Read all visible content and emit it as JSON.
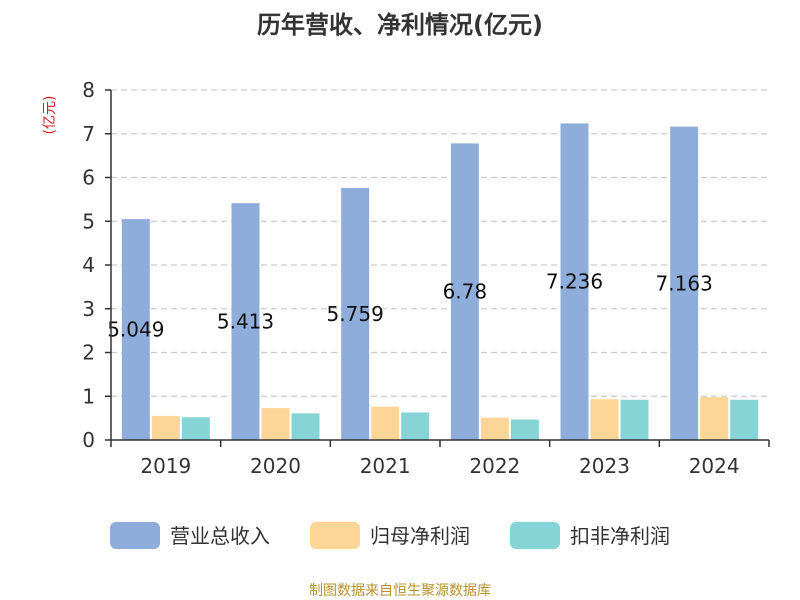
{
  "chart_data": {
    "type": "bar",
    "title": "历年营收、净利情况(亿元)",
    "unit_label": "(亿元)",
    "categories": [
      "2019",
      "2020",
      "2021",
      "2022",
      "2023",
      "2024"
    ],
    "series": [
      {
        "name": "营业总收入",
        "color": "#8eaddb",
        "values": [
          5.049,
          5.413,
          5.759,
          6.78,
          7.236,
          7.163
        ]
      },
      {
        "name": "归母净利润",
        "color": "#fdd596",
        "values": [
          0.55,
          0.73,
          0.76,
          0.51,
          0.93,
          0.98
        ]
      },
      {
        "name": "扣非净利润",
        "color": "#86d4d6",
        "values": [
          0.52,
          0.61,
          0.63,
          0.47,
          0.92,
          0.92
        ]
      }
    ],
    "data_labels": [
      "5.049",
      "5.413",
      "5.759",
      "6.78",
      "7.236",
      "7.163"
    ],
    "ylim": [
      0,
      8
    ],
    "yticks": [
      "0",
      "1",
      "2",
      "3",
      "4",
      "5",
      "6",
      "7",
      "8"
    ],
    "grid": true,
    "legend_position": "bottom"
  },
  "source": "制图数据来自恒生聚源数据库",
  "colors": {
    "unit_label": "#d42020",
    "source": "#b8912f",
    "grid": "#cccccc",
    "axis": "#333333"
  }
}
